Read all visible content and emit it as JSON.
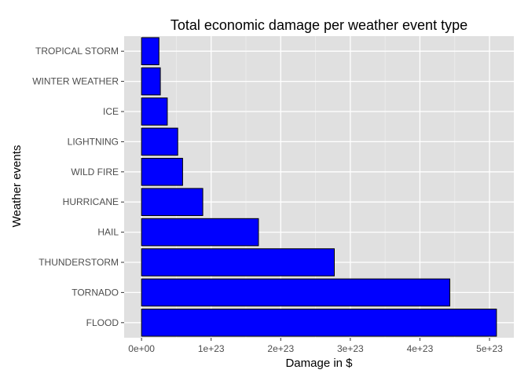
{
  "chart_data": {
    "type": "bar",
    "orientation": "horizontal",
    "title": "Total economic damage per weather event type",
    "xlabel": "Damage in $",
    "ylabel": "Weather events",
    "categories": [
      "FLOOD",
      "TORNADO",
      "THUNDERSTORM",
      "HAIL",
      "HURRICANE",
      "WILD FIRE",
      "LIGHTNING",
      "ICE",
      "WINTER WEATHER",
      "TROPICAL STORM"
    ],
    "values": [
      5.1e+23,
      4.43e+23,
      2.77e+23,
      1.68e+23,
      8.8e+22,
      5.9e+22,
      5.2e+22,
      3.7e+22,
      2.7e+22,
      2.5e+22
    ],
    "xlim": [
      -2.5e+22,
      5.35e+23
    ],
    "xticks": [
      0,
      1e+23,
      2e+23,
      3e+23,
      4e+23,
      5e+23
    ],
    "xtick_labels": [
      "0e+00",
      "1e+23",
      "2e+23",
      "3e+23",
      "4e+23",
      "5e+23"
    ],
    "grid": true,
    "legend": "none",
    "colors": {
      "bar_fill": "#0000ff",
      "bar_stroke": "#000000",
      "panel_bg": "#e0e0e0",
      "grid_major": "#ffffff",
      "grid_minor": "#ededed",
      "tick_text": "#4d4d4d"
    }
  }
}
